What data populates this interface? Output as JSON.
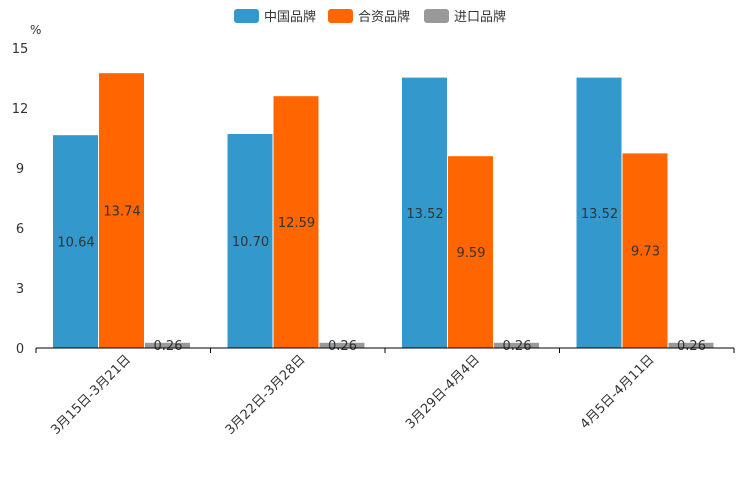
{
  "chart_data": {
    "type": "bar",
    "title": "",
    "unit": "%",
    "categories": [
      "3月15日-3月21日",
      "3月22日-3月28日",
      "3月29日-4月4日",
      "4月5日-4月11日"
    ],
    "series": [
      {
        "name": "中国品牌",
        "color": "#3399cc",
        "values": [
          10.64,
          10.7,
          13.52,
          13.52
        ],
        "labels": [
          "10.64",
          "10.70",
          "13.52",
          "13.52"
        ]
      },
      {
        "name": "合资品牌",
        "color": "#ff6600",
        "values": [
          13.74,
          12.59,
          9.59,
          9.73
        ],
        "labels": [
          "13.74",
          "12.59",
          "9.59",
          "9.73"
        ]
      },
      {
        "name": "进口品牌",
        "color": "#999999",
        "values": [
          0.26,
          0.26,
          0.26,
          0.26
        ],
        "labels": [
          "0.26",
          "0.26",
          "0.26",
          "0.26"
        ]
      }
    ],
    "ylim": [
      0,
      15
    ],
    "yticks": [
      "0",
      "3",
      "6",
      "9",
      "12",
      "15"
    ],
    "ytick_values": [
      0,
      3,
      6,
      9,
      12,
      15
    ],
    "legend_position": "top-center",
    "grid": false
  }
}
